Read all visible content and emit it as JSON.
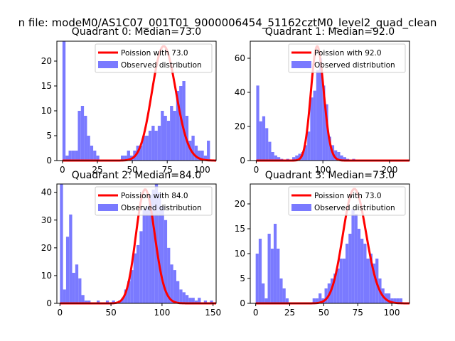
{
  "figure": {
    "suptitle": "n file: modeM0/AS1C07_001T01_9000006454_51162cztM0_level2_quad_clean"
  },
  "colors": {
    "bars": "#7a7aff",
    "curve": "#ff0000"
  },
  "chart_data": [
    {
      "type": "bar",
      "title": "Quadrant 0: Median=73.0",
      "xlim": [
        -4,
        110
      ],
      "ylim": [
        0,
        24
      ],
      "xticks": [
        0,
        25,
        50,
        75,
        100
      ],
      "yticks": [
        0,
        5,
        10,
        15,
        20
      ],
      "bin_width": 2.2,
      "bins": [
        [
          0,
          24
        ],
        [
          2.2,
          1
        ],
        [
          4.4,
          2
        ],
        [
          6.6,
          2
        ],
        [
          8.8,
          2
        ],
        [
          11,
          10
        ],
        [
          13.2,
          11
        ],
        [
          15.4,
          9
        ],
        [
          17.6,
          5
        ],
        [
          19.8,
          3
        ],
        [
          22,
          2
        ],
        [
          24.2,
          1
        ],
        [
          41.8,
          1
        ],
        [
          44,
          1
        ],
        [
          46.2,
          2
        ],
        [
          48.4,
          1
        ],
        [
          50.6,
          2
        ],
        [
          52.8,
          3
        ],
        [
          55,
          3
        ],
        [
          57.2,
          5
        ],
        [
          59.4,
          5
        ],
        [
          61.6,
          6
        ],
        [
          63.8,
          7
        ],
        [
          66,
          6
        ],
        [
          68.2,
          7
        ],
        [
          70.4,
          10
        ],
        [
          72.6,
          9
        ],
        [
          74.8,
          8
        ],
        [
          77,
          11
        ],
        [
          79.2,
          10
        ],
        [
          81.4,
          14
        ],
        [
          83.6,
          15
        ],
        [
          85.8,
          16
        ],
        [
          88,
          9
        ],
        [
          90.2,
          4
        ],
        [
          92.4,
          5
        ],
        [
          94.6,
          3
        ],
        [
          96.8,
          2
        ],
        [
          99,
          2
        ],
        [
          101.2,
          1
        ],
        [
          103.4,
          4
        ]
      ],
      "poisson_mean": 73.0,
      "poisson_scale": 23,
      "legend": {
        "position": "top-right",
        "curve_label": "Poission with 73.0",
        "bars_label": "Observed distribution"
      }
    },
    {
      "type": "bar",
      "title": "Quadrant 1: Median=92.0",
      "xlim": [
        -9,
        230
      ],
      "ylim": [
        0,
        70
      ],
      "xticks": [
        0,
        100,
        200
      ],
      "yticks": [
        0,
        20,
        40,
        60
      ],
      "bin_width": 4.5,
      "bins": [
        [
          0,
          44
        ],
        [
          4.5,
          23
        ],
        [
          9,
          26
        ],
        [
          13.5,
          19
        ],
        [
          18,
          11
        ],
        [
          22.5,
          5
        ],
        [
          27,
          3
        ],
        [
          31.5,
          2
        ],
        [
          36,
          1
        ],
        [
          45,
          1
        ],
        [
          54,
          2
        ],
        [
          58.5,
          3
        ],
        [
          63,
          4
        ],
        [
          67.5,
          5
        ],
        [
          72,
          9
        ],
        [
          76.5,
          17
        ],
        [
          81,
          37
        ],
        [
          85.5,
          41
        ],
        [
          90,
          53
        ],
        [
          94.5,
          60
        ],
        [
          99,
          44
        ],
        [
          103.5,
          33
        ],
        [
          108,
          14
        ],
        [
          112.5,
          9
        ],
        [
          117,
          6
        ],
        [
          121.5,
          5
        ],
        [
          126,
          3
        ],
        [
          130.5,
          2
        ],
        [
          135,
          1
        ],
        [
          144,
          1
        ]
      ],
      "poisson_mean": 92.0,
      "poisson_scale": 67,
      "legend": {
        "position": "top-right",
        "curve_label": "Poission with 92.0",
        "bars_label": "Observed distribution"
      }
    },
    {
      "type": "bar",
      "title": "Quadrant 2: Median=84.0",
      "xlim": [
        -3,
        153
      ],
      "ylim": [
        0,
        43
      ],
      "xticks": [
        0,
        50,
        100,
        150
      ],
      "yticks": [
        0,
        10,
        20,
        30,
        40
      ],
      "bin_width": 3,
      "bins": [
        [
          0,
          43
        ],
        [
          3,
          5
        ],
        [
          6,
          24
        ],
        [
          9,
          32
        ],
        [
          12,
          11
        ],
        [
          15,
          14
        ],
        [
          18,
          9
        ],
        [
          21,
          3
        ],
        [
          24,
          1
        ],
        [
          27,
          1
        ],
        [
          36,
          1
        ],
        [
          45,
          1
        ],
        [
          51,
          1
        ],
        [
          57,
          1
        ],
        [
          60,
          2
        ],
        [
          63,
          5
        ],
        [
          66,
          8
        ],
        [
          69,
          12
        ],
        [
          72,
          18
        ],
        [
          75,
          21
        ],
        [
          78,
          26
        ],
        [
          81,
          34
        ],
        [
          84,
          35
        ],
        [
          87,
          39
        ],
        [
          90,
          41
        ],
        [
          93,
          43
        ],
        [
          96,
          40
        ],
        [
          99,
          35
        ],
        [
          102,
          30
        ],
        [
          105,
          20
        ],
        [
          108,
          14
        ],
        [
          111,
          12
        ],
        [
          114,
          8
        ],
        [
          117,
          5
        ],
        [
          120,
          4
        ],
        [
          123,
          3
        ],
        [
          126,
          2
        ],
        [
          129,
          2
        ],
        [
          132,
          1
        ],
        [
          135,
          2
        ],
        [
          141,
          1
        ],
        [
          147,
          1
        ]
      ],
      "poisson_mean": 84.0,
      "poisson_scale": 41,
      "legend": {
        "position": "top-right",
        "curve_label": "Poission with 84.0",
        "bars_label": "Observed distribution"
      }
    },
    {
      "type": "bar",
      "title": "Quadrant 3: Median=73.0",
      "xlim": [
        -4,
        113
      ],
      "ylim": [
        0,
        24
      ],
      "xticks": [
        0,
        25,
        50,
        75,
        100
      ],
      "yticks": [
        0,
        5,
        10,
        15,
        20
      ],
      "bin_width": 2.2,
      "bins": [
        [
          0,
          10
        ],
        [
          2.2,
          13
        ],
        [
          4.4,
          4
        ],
        [
          6.6,
          1
        ],
        [
          8.8,
          14
        ],
        [
          11,
          11
        ],
        [
          13.2,
          16
        ],
        [
          15.4,
          11
        ],
        [
          17.6,
          5
        ],
        [
          19.8,
          3
        ],
        [
          22,
          1
        ],
        [
          41.8,
          1
        ],
        [
          44,
          1
        ],
        [
          46.2,
          2
        ],
        [
          48.4,
          1
        ],
        [
          50.6,
          3
        ],
        [
          52.8,
          4
        ],
        [
          55,
          5
        ],
        [
          57.2,
          6
        ],
        [
          59.4,
          7
        ],
        [
          61.6,
          9
        ],
        [
          63.8,
          9
        ],
        [
          66,
          12
        ],
        [
          68.2,
          14
        ],
        [
          70.4,
          19
        ],
        [
          72.6,
          18
        ],
        [
          74.8,
          15
        ],
        [
          77,
          13
        ],
        [
          79.2,
          12
        ],
        [
          81.4,
          9
        ],
        [
          83.6,
          10
        ],
        [
          85.8,
          8
        ],
        [
          88,
          9
        ],
        [
          90.2,
          5
        ],
        [
          92.4,
          3
        ],
        [
          94.6,
          2
        ],
        [
          96.8,
          2
        ],
        [
          99,
          1
        ],
        [
          101.2,
          1
        ],
        [
          103.4,
          1
        ],
        [
          105.6,
          1
        ]
      ],
      "poisson_mean": 73.0,
      "poisson_scale": 23,
      "legend": {
        "position": "top-right",
        "curve_label": "Poission with 73.0",
        "bars_label": "Observed distribution"
      }
    }
  ]
}
